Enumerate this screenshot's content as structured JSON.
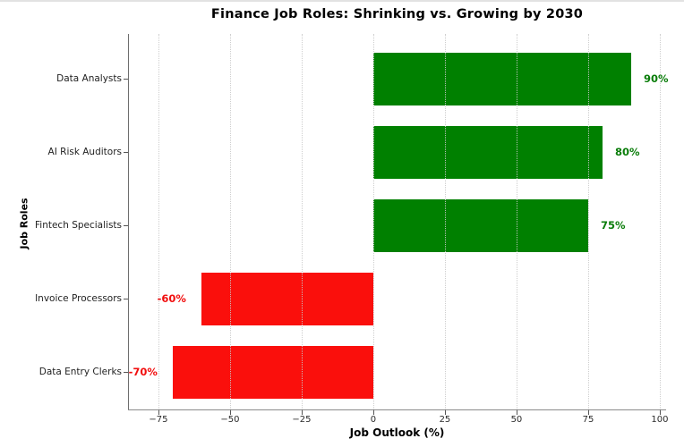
{
  "figure": {
    "background": "#ffffff",
    "top_border_color": "#e2e2e2"
  },
  "chart_data": {
    "type": "bar",
    "orientation": "horizontal",
    "title": "Finance Job Roles: Shrinking vs. Growing by 2030",
    "xlabel": "Job Outlook (%)",
    "ylabel": "Job Roles",
    "categories": [
      "Data Analysts",
      "AI Risk Auditors",
      "Fintech Specialists",
      "Invoice Processors",
      "Data Entry Clerks"
    ],
    "values": [
      90,
      80,
      75,
      -60,
      -70
    ],
    "value_labels": [
      "90%",
      "80%",
      "75%",
      "-60%",
      "-70%"
    ],
    "xlim": [
      -85.6,
      102.2
    ],
    "xticks": [
      -75,
      -50,
      -25,
      0,
      25,
      50,
      75,
      100
    ],
    "xtick_labels": [
      "−75",
      "−50",
      "−25",
      "0",
      "25",
      "50",
      "75",
      "100"
    ],
    "grid": true,
    "grid_style": "dotted",
    "legend": "none",
    "colors": {
      "positive_bar": "#008000",
      "negative_bar": "#fa0f0c",
      "positive_label": "#0a7d0a",
      "negative_label": "#f10e0e",
      "grid": "#c9c9c9",
      "spine": "#6e6e6e",
      "tick_label": "#2a2a2a",
      "category_label": "#1f1f1f",
      "title": "#000000"
    }
  }
}
